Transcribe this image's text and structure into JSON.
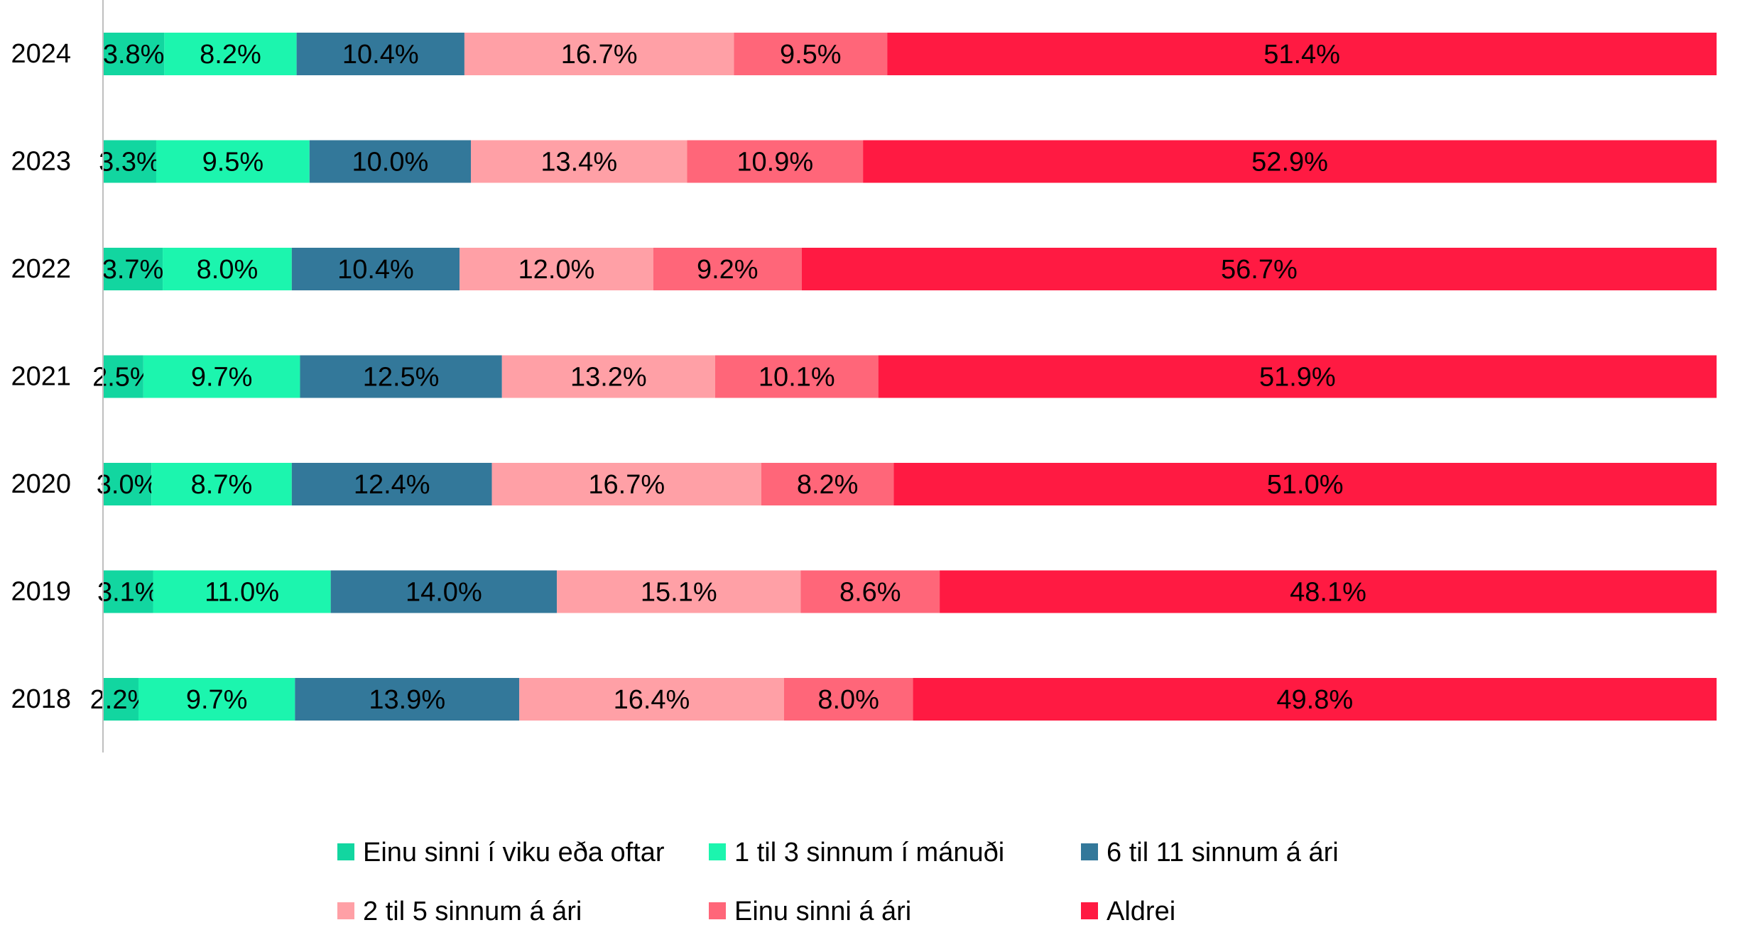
{
  "chart_data": {
    "type": "bar",
    "orientation": "horizontal",
    "stacked": true,
    "percent_stacked": true,
    "title": "",
    "xlabel": "",
    "ylabel": "",
    "xlim": [
      0,
      100
    ],
    "grid": false,
    "legend_position": "bottom",
    "categories": [
      "2024",
      "2023",
      "2022",
      "2021",
      "2020",
      "2019",
      "2018"
    ],
    "series": [
      {
        "name": "Einu sinni í viku eða oftar",
        "color": "#12D6A0",
        "values": [
          3.8,
          3.3,
          3.7,
          2.5,
          3.0,
          3.1,
          2.2
        ],
        "labels": [
          "3.8%",
          "3.3%",
          "3.7%",
          "2.5%",
          "3.0%",
          "3.1%",
          "2.2%"
        ]
      },
      {
        "name": "1 til 3 sinnum í mánuði",
        "color": "#1CF5AE",
        "values": [
          8.2,
          9.5,
          8.0,
          9.7,
          8.7,
          11.0,
          9.7
        ],
        "labels": [
          "8.2%",
          "9.5%",
          "8.0%",
          "9.7%",
          "8.7%",
          "11.0%",
          "9.7%"
        ]
      },
      {
        "name": "6 til 11 sinnum á ári",
        "color": "#33789A",
        "values": [
          10.4,
          10.0,
          10.4,
          12.5,
          12.4,
          14.0,
          13.9
        ],
        "labels": [
          "10.4%",
          "10.0%",
          "10.4%",
          "12.5%",
          "12.4%",
          "14.0%",
          "13.9%"
        ]
      },
      {
        "name": "2 til 5 sinnum á ári",
        "color": "#FFA0A6",
        "values": [
          16.7,
          13.4,
          12.0,
          13.2,
          16.7,
          15.1,
          16.4
        ],
        "labels": [
          "16.7%",
          "13.4%",
          "12.0%",
          "13.2%",
          "16.7%",
          "15.1%",
          "16.4%"
        ]
      },
      {
        "name": "Einu sinni á ári",
        "color": "#FF6679",
        "values": [
          9.5,
          10.9,
          9.2,
          10.1,
          8.2,
          8.6,
          8.0
        ],
        "labels": [
          "9.5%",
          "10.9%",
          "9.2%",
          "10.1%",
          "8.2%",
          "8.6%",
          "8.0%"
        ]
      },
      {
        "name": "Aldrei",
        "color": "#FF1A42",
        "values": [
          51.4,
          52.9,
          56.7,
          51.9,
          51.0,
          48.1,
          49.8
        ],
        "labels": [
          "51.4%",
          "52.9%",
          "56.7%",
          "51.9%",
          "51.0%",
          "48.1%",
          "49.8%"
        ]
      }
    ]
  }
}
